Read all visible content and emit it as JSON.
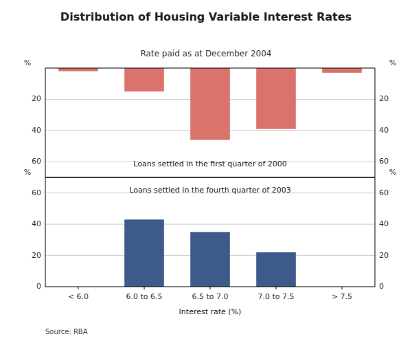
{
  "chart_data": [
    {
      "type": "bar",
      "title": "Distribution of Housing Variable Interest Rates",
      "subtitle": "Rate paid as at December 2004",
      "categories": [
        "< 6.0",
        "6.0 to 6.5",
        "6.5 to 7.0",
        "7.0 to 7.5",
        "> 7.5"
      ],
      "values": [
        2,
        15,
        46,
        39,
        3
      ],
      "color": "#d9736b",
      "ylim": [
        70,
        0
      ],
      "yticks": [
        20,
        40,
        60
      ],
      "y2lim": [
        70,
        0
      ],
      "y2ticks": [
        20,
        40,
        60
      ],
      "ylabel": "%",
      "y2label": "%",
      "annotation": "Loans settled in the first quarter of 2000",
      "grid": true,
      "tick_labels": "y"
    },
    {
      "type": "bar",
      "categories": [
        "< 6.0",
        "6.0 to 6.5",
        "6.5 to 7.0",
        "7.0 to 7.5",
        "> 7.5"
      ],
      "values": [
        0,
        43,
        35,
        22,
        0
      ],
      "color": "#3d5a8a",
      "ylim": [
        0,
        70
      ],
      "yticks": [
        0,
        20,
        40,
        60
      ],
      "y2lim": [
        0,
        70
      ],
      "y2ticks": [
        0,
        20,
        40,
        60
      ],
      "ylabel": "%",
      "y2label": "%",
      "annotation": "Loans settled in the fourth quarter of 2003",
      "xlabel": "Interest rate (%)",
      "source": "Source: RBA",
      "grid": true
    }
  ]
}
